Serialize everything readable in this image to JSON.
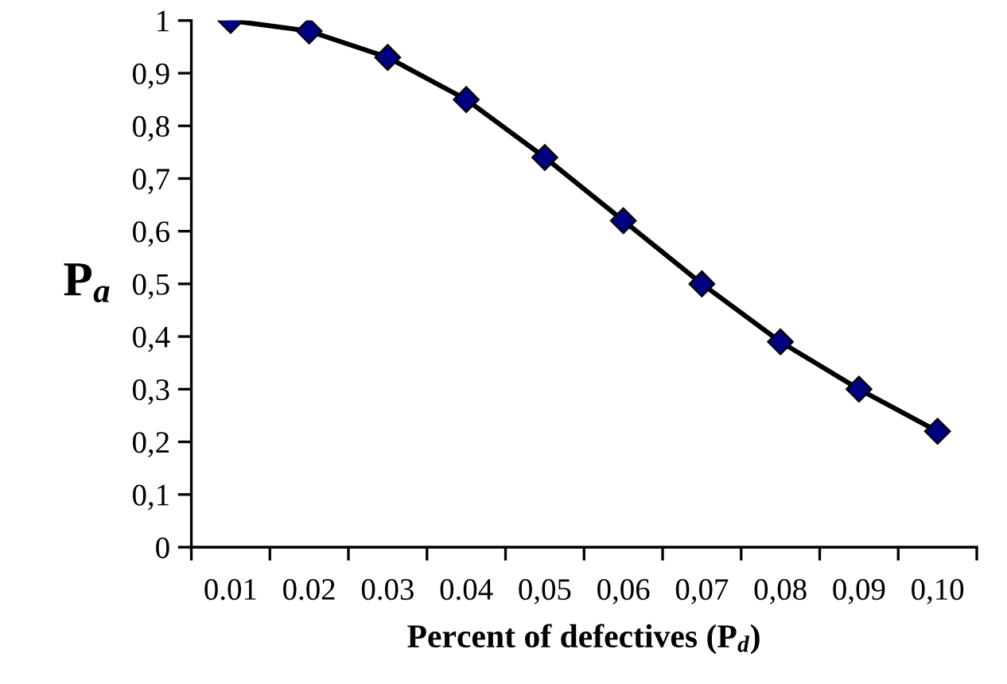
{
  "chart_data": {
    "type": "line",
    "xlabel": "Percent of defectives (P$_{d}$)",
    "ylabel": "P$_{a}$",
    "categories": [
      "0.01",
      "0.02",
      "0.03",
      "0.04",
      "0,05",
      "0,06",
      "0,07",
      "0,08",
      "0,09",
      "0,10"
    ],
    "series": [
      {
        "color": "#000080",
        "values": [
          1,
          0.98,
          0.93,
          0.85,
          0.74,
          0.62,
          0.5,
          0.39,
          0.3,
          0.22
        ]
      }
    ],
    "ylim": [
      0,
      1
    ],
    "yticks": [
      0,
      {
        "value": 0.1,
        "label": "0,1"
      },
      {
        "value": 0.2,
        "label": "0,2"
      },
      {
        "value": 0.3,
        "label": "0,3"
      },
      {
        "value": 0.4,
        "label": "0,4"
      },
      {
        "value": 0.5,
        "label": "0,5"
      },
      {
        "value": 0.6,
        "label": "0,6"
      },
      {
        "value": 0.7,
        "label": "0,7"
      },
      {
        "value": 0.8,
        "label": "0,8"
      },
      {
        "value": 0.9,
        "label": "0,9"
      },
      1
    ],
    "marker": "diamond",
    "line_style": "solid",
    "grid": false,
    "legend": false
  }
}
